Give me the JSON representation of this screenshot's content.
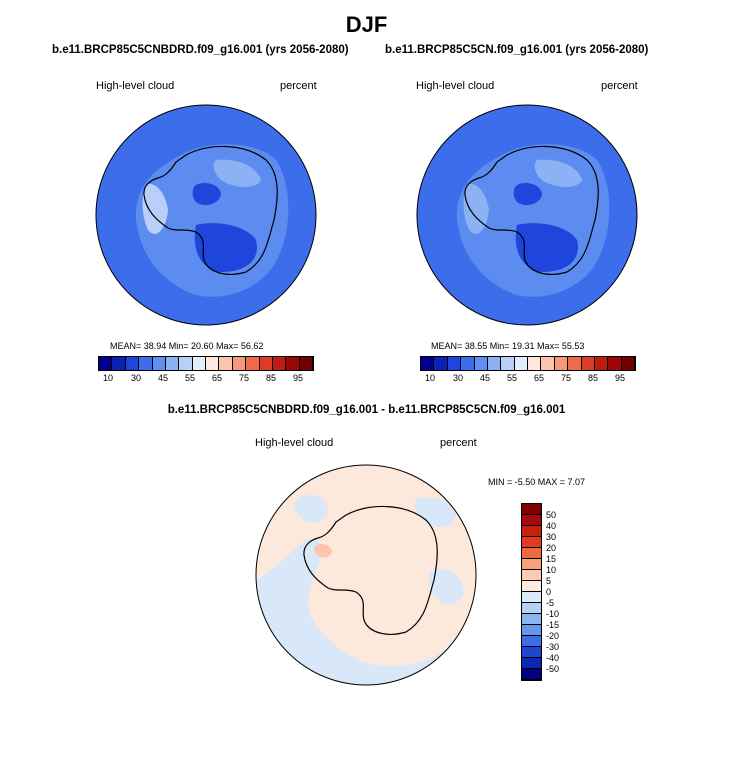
{
  "season": "DJF",
  "panels": [
    {
      "case": "b.e11.BRCP85C5CNBDRD.f09_g16.001 (yrs 2056-2080)",
      "variable": "High-level cloud",
      "units": "percent",
      "stats": "MEAN=  38.94   Min=  20.60   Max=  56.62",
      "colorbar": {
        "labels": [
          "10",
          "30",
          "45",
          "55",
          "65",
          "75",
          "85",
          "95"
        ]
      }
    },
    {
      "case": "b.e11.BRCP85C5CN.f09_g16.001 (yrs 2056-2080)",
      "variable": "High-level cloud",
      "units": "percent",
      "stats": "MEAN=  38.55   Min=  19.31   Max=  55.53",
      "colorbar": {
        "labels": [
          "10",
          "30",
          "45",
          "55",
          "65",
          "75",
          "85",
          "95"
        ]
      }
    }
  ],
  "diff": {
    "title": "b.e11.BRCP85C5CNBDRD.f09_g16.001 - b.e11.BRCP85C5CN.f09_g16.001",
    "variable": "High-level cloud",
    "units": "percent",
    "stats": "MIN =  -5.50 MAX =   7.07",
    "colorbar": {
      "labels": [
        "50",
        "40",
        "30",
        "20",
        "15",
        "10",
        "5",
        "0",
        "-5",
        "-10",
        "-15",
        "-20",
        "-30",
        "-40",
        "-50"
      ],
      "colors": [
        "#800000",
        "#a50a0a",
        "#c8200d",
        "#e23b1f",
        "#f06a3f",
        "#f7a07c",
        "#fbcbb2",
        "#fdebe0",
        "#dbeaf8",
        "#b4d0f2",
        "#8cb4ee",
        "#6496ec",
        "#3c6ee6",
        "#1e46d2",
        "#0a28b4",
        "#000080"
      ]
    }
  },
  "seq_colorbar_colors": [
    "#00008c",
    "#0a23b4",
    "#1e46dc",
    "#3c6eeb",
    "#5f8ff0",
    "#8cb1f4",
    "#b8d0f8",
    "#e2eefc",
    "#fde8df",
    "#fac4ad",
    "#f6987a",
    "#ee6a4b",
    "#dc3c26",
    "#c11a12",
    "#9a0606",
    "#6e0000"
  ],
  "colors": {
    "base_blue": "#3c6eeb",
    "diff_pos": "#fde8dc",
    "diff_neg": "#d8e8f8"
  }
}
